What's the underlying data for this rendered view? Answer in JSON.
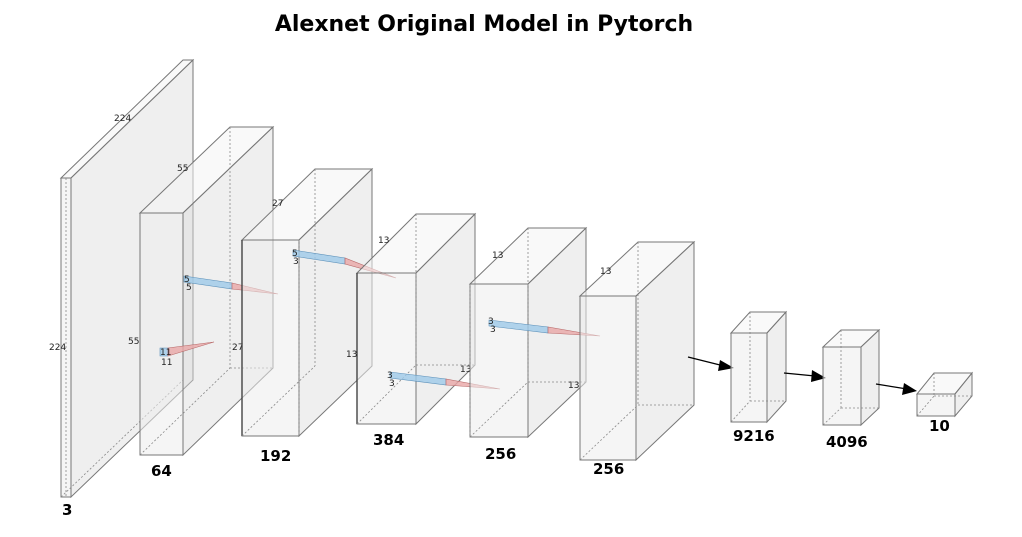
{
  "title": "Alexnet Original Model in Pytorch",
  "layers": [
    {
      "channels": "3",
      "width": "224",
      "height": "224"
    },
    {
      "channels": "64",
      "width": "55",
      "height": "55"
    },
    {
      "channels": "192",
      "width": "27",
      "height": "27"
    },
    {
      "channels": "384",
      "width": "13",
      "height": "13"
    },
    {
      "channels": "256",
      "width": "13",
      "height": "13"
    },
    {
      "channels": "256",
      "width": "13",
      "height": ""
    },
    {
      "channels": "9216"
    },
    {
      "channels": "4096"
    },
    {
      "channels": "10"
    }
  ],
  "kernels": [
    {
      "a": "11",
      "b": "11"
    },
    {
      "a": "5",
      "b": "5"
    },
    {
      "a": "5",
      "b": "3"
    },
    {
      "a": "3",
      "b": "3"
    },
    {
      "a": "3",
      "b": "3"
    }
  ],
  "colors": {
    "kernel_blue": "#9ec9e8",
    "kernel_red": "#e8a6a6"
  }
}
